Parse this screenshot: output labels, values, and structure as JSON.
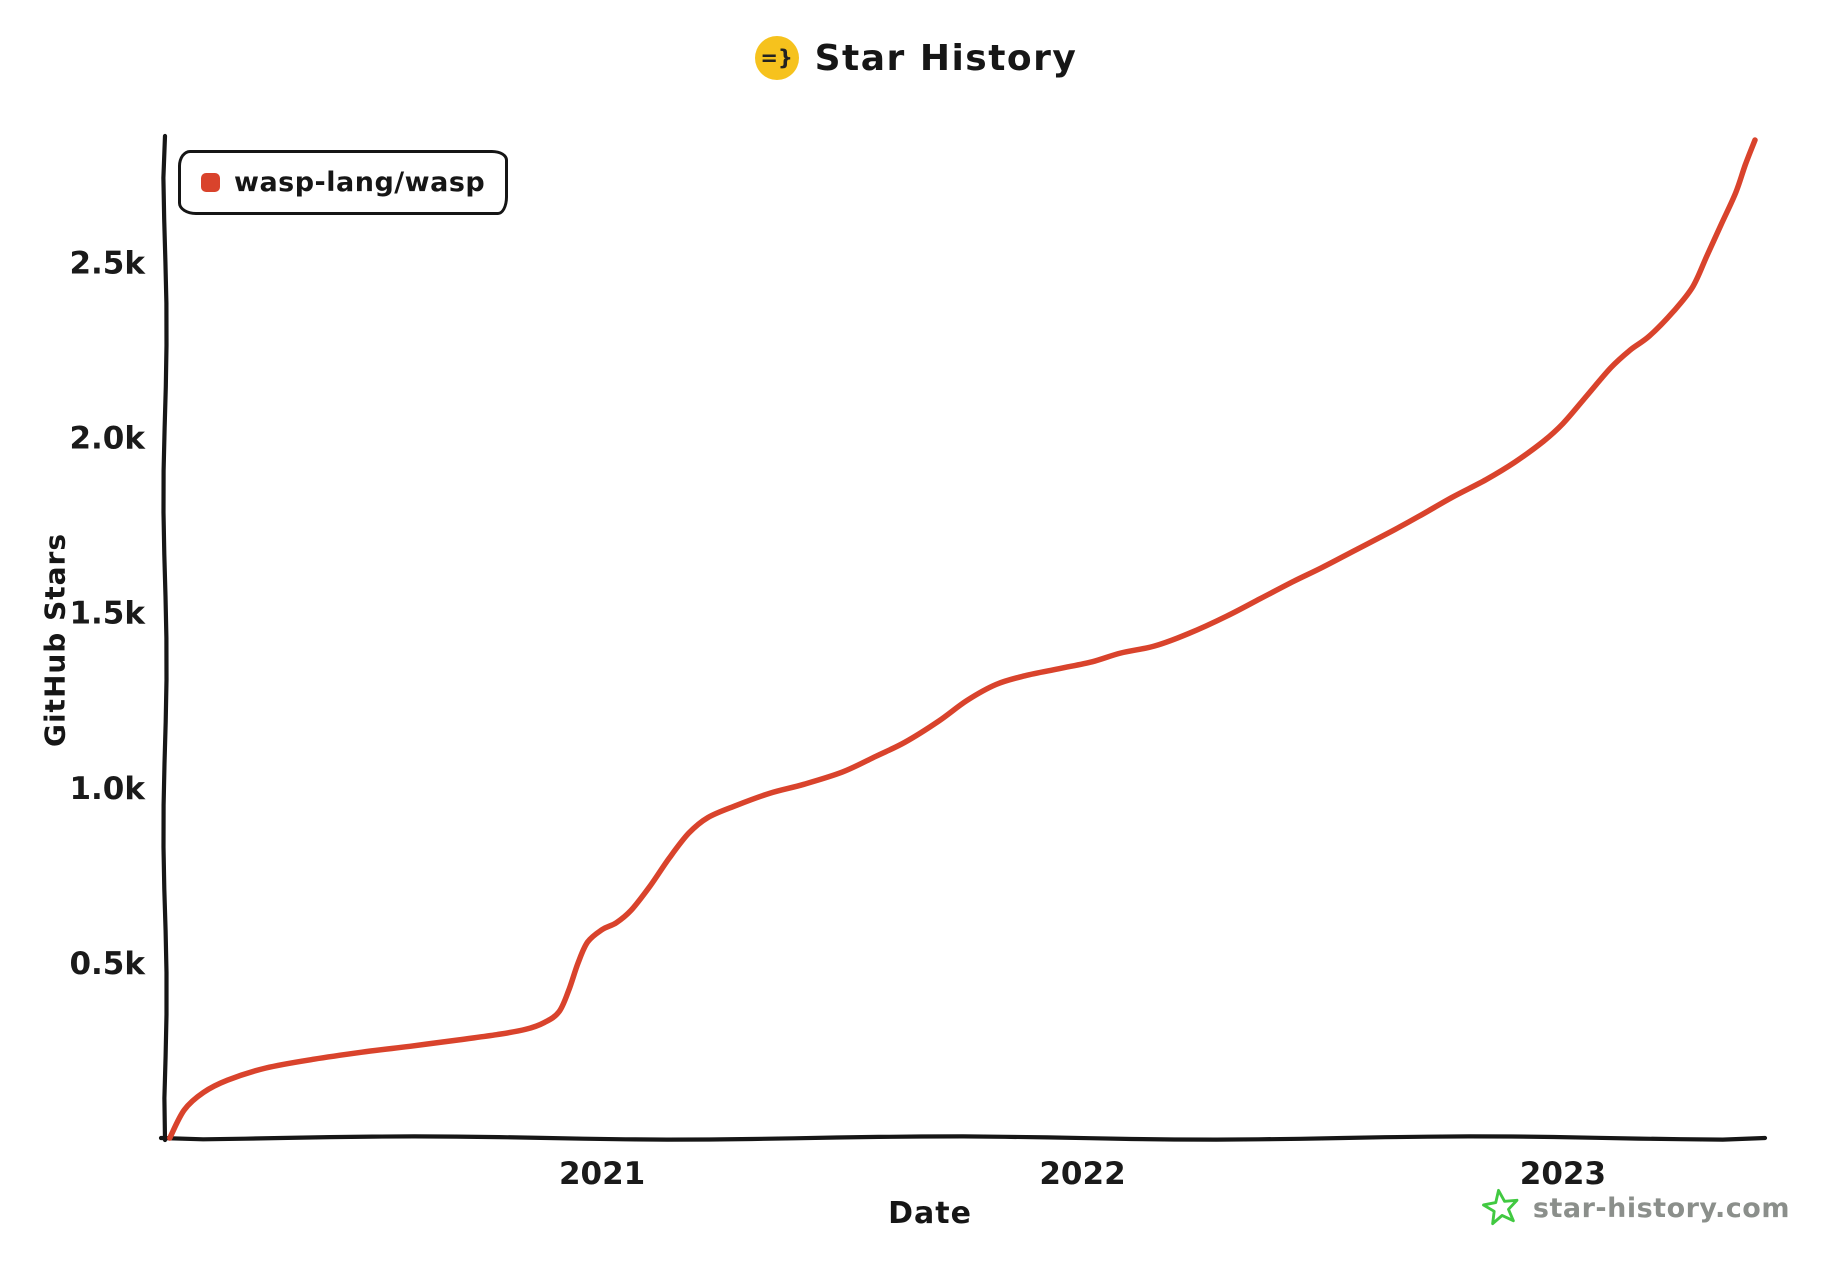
{
  "header": {
    "icon_text": "=}",
    "title": "Star History"
  },
  "watermark": {
    "text": "star-history.com"
  },
  "colors": {
    "series_red": "#d9432c",
    "icon_yellow": "#f6c21d",
    "star_green": "#41c941",
    "axis_black": "#161616",
    "watermark_gray": "#8b8f8b"
  },
  "chart_data": {
    "type": "line",
    "title": "Star History",
    "xlabel": "Date",
    "ylabel": "GitHub Stars",
    "legend_position": "top-left",
    "grid": false,
    "xlim": [
      2020.09,
      2023.4
    ],
    "ylim": [
      0,
      2850
    ],
    "x_ticks": [
      {
        "value": 2021,
        "label": "2021"
      },
      {
        "value": 2022,
        "label": "2022"
      },
      {
        "value": 2023,
        "label": "2023"
      }
    ],
    "y_ticks": [
      {
        "value": 500,
        "label": "0.5k"
      },
      {
        "value": 1000,
        "label": "1.0k"
      },
      {
        "value": 1500,
        "label": "1.5k"
      },
      {
        "value": 2000,
        "label": "2.0k"
      },
      {
        "value": 2500,
        "label": "2.5k"
      }
    ],
    "series": [
      {
        "name": "wasp-lang/wasp",
        "color": "#d9432c",
        "points": [
          [
            2020.1,
            0
          ],
          [
            2020.13,
            80
          ],
          [
            2020.17,
            130
          ],
          [
            2020.22,
            165
          ],
          [
            2020.3,
            200
          ],
          [
            2020.4,
            225
          ],
          [
            2020.5,
            245
          ],
          [
            2020.6,
            262
          ],
          [
            2020.7,
            280
          ],
          [
            2020.78,
            295
          ],
          [
            2020.84,
            310
          ],
          [
            2020.88,
            330
          ],
          [
            2020.91,
            360
          ],
          [
            2020.93,
            420
          ],
          [
            2020.95,
            500
          ],
          [
            2020.97,
            560
          ],
          [
            2021.0,
            595
          ],
          [
            2021.03,
            615
          ],
          [
            2021.06,
            650
          ],
          [
            2021.1,
            720
          ],
          [
            2021.14,
            800
          ],
          [
            2021.18,
            870
          ],
          [
            2021.22,
            915
          ],
          [
            2021.28,
            950
          ],
          [
            2021.35,
            985
          ],
          [
            2021.42,
            1010
          ],
          [
            2021.5,
            1045
          ],
          [
            2021.57,
            1090
          ],
          [
            2021.63,
            1130
          ],
          [
            2021.7,
            1190
          ],
          [
            2021.76,
            1250
          ],
          [
            2021.82,
            1295
          ],
          [
            2021.88,
            1320
          ],
          [
            2021.95,
            1340
          ],
          [
            2022.02,
            1360
          ],
          [
            2022.08,
            1385
          ],
          [
            2022.15,
            1405
          ],
          [
            2022.22,
            1440
          ],
          [
            2022.3,
            1490
          ],
          [
            2022.37,
            1540
          ],
          [
            2022.44,
            1590
          ],
          [
            2022.5,
            1630
          ],
          [
            2022.57,
            1680
          ],
          [
            2022.64,
            1730
          ],
          [
            2022.7,
            1775
          ],
          [
            2022.77,
            1830
          ],
          [
            2022.84,
            1880
          ],
          [
            2022.9,
            1930
          ],
          [
            2022.96,
            1990
          ],
          [
            2023.0,
            2040
          ],
          [
            2023.05,
            2120
          ],
          [
            2023.1,
            2200
          ],
          [
            2023.14,
            2250
          ],
          [
            2023.18,
            2290
          ],
          [
            2023.23,
            2360
          ],
          [
            2023.27,
            2430
          ],
          [
            2023.3,
            2520
          ],
          [
            2023.33,
            2610
          ],
          [
            2023.36,
            2700
          ],
          [
            2023.38,
            2780
          ],
          [
            2023.4,
            2850
          ]
        ]
      }
    ]
  }
}
